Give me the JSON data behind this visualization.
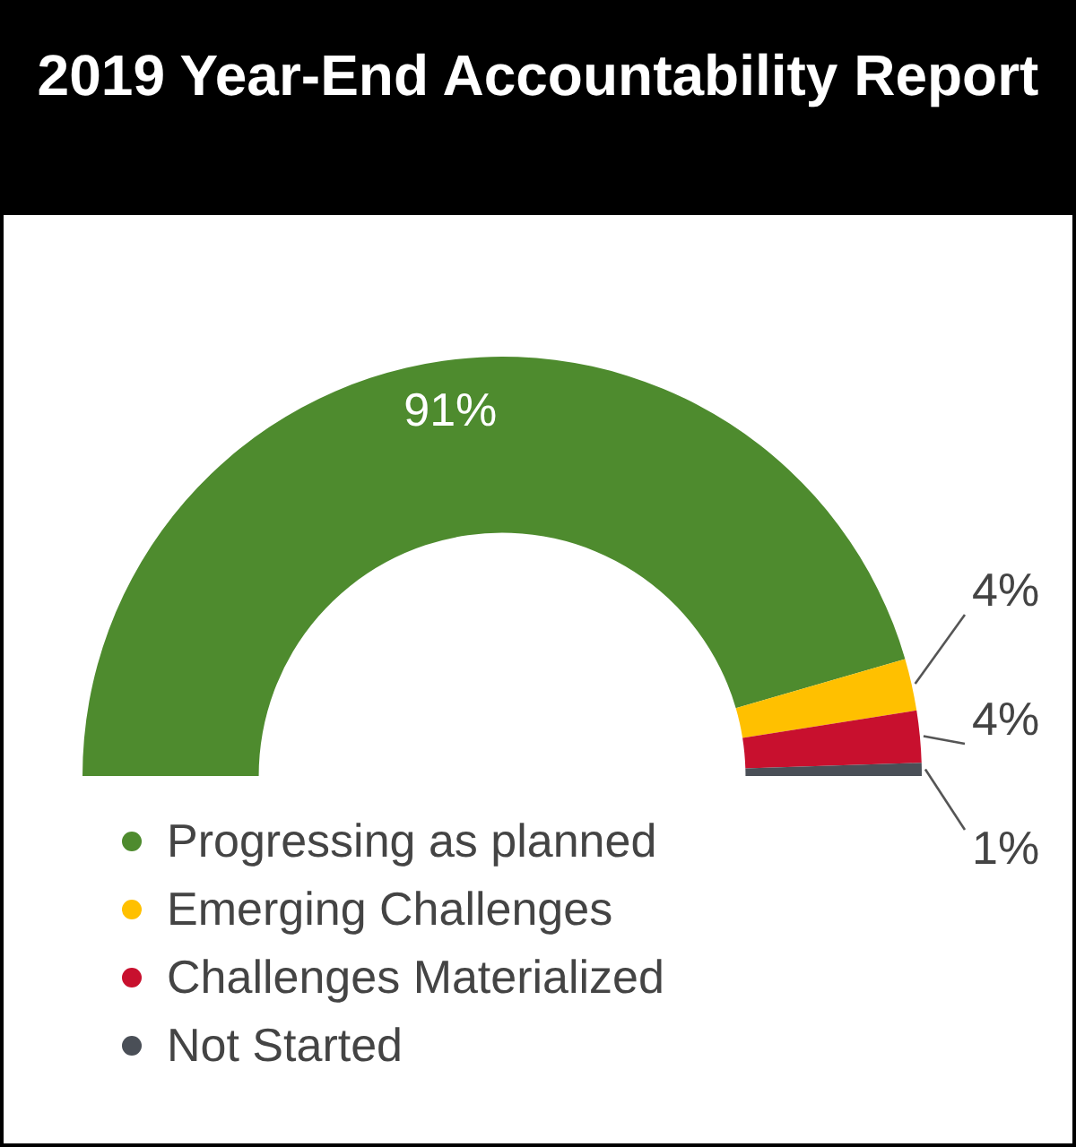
{
  "chart_data": {
    "type": "donut",
    "title": "2019 Year-End Accountability Report",
    "categories": [
      "Progressing as planned",
      "Emerging Challenges",
      "Challenges Materialized",
      "Not Started"
    ],
    "values": [
      91,
      4,
      4,
      1
    ],
    "colors": [
      "#4e8b2e",
      "#ffc000",
      "#c8102e",
      "#4a4f57"
    ],
    "value_labels": [
      "91%",
      "4%",
      "4%",
      "1%"
    ],
    "legend": "bottom left"
  }
}
